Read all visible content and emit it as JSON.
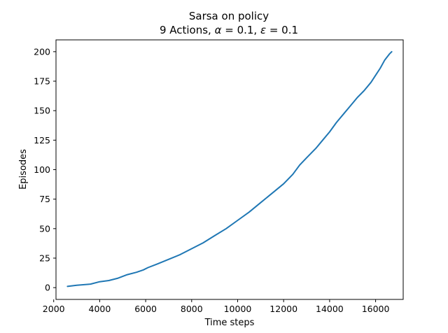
{
  "chart_data": {
    "type": "line",
    "title_line1": "Sarsa on policy",
    "title_line2_prefix": "9 Actions, ",
    "alpha_symbol": "α",
    "alpha_text": " = 0.1, ",
    "epsilon_symbol": "ε",
    "epsilon_text": " = 0.1",
    "xlabel": "Time steps",
    "ylabel": "Episodes",
    "xlim": [
      2100,
      17200
    ],
    "ylim": [
      -10,
      210
    ],
    "xticks": [
      2000,
      4000,
      6000,
      8000,
      10000,
      12000,
      14000,
      16000
    ],
    "yticks": [
      0,
      25,
      50,
      75,
      100,
      125,
      150,
      175,
      200
    ],
    "grid": false,
    "color": "#1f77b4",
    "series": [
      {
        "x": [
          2600,
          3000,
          3600,
          4000,
          4400,
          4800,
          5200,
          5600,
          5900,
          6100,
          6500,
          7000,
          7500,
          8000,
          8500,
          9000,
          9500,
          10000,
          10500,
          11000,
          11500,
          12000,
          12400,
          12700,
          13000,
          13400,
          13700,
          14000,
          14300,
          14600,
          14900,
          15200,
          15500,
          15800,
          16000,
          16200,
          16400,
          16600,
          16700
        ],
        "y": [
          1,
          2,
          3,
          5,
          6,
          8,
          11,
          13,
          15,
          17,
          20,
          24,
          28,
          33,
          38,
          44,
          50,
          57,
          64,
          72,
          80,
          88,
          96,
          104,
          110,
          118,
          125,
          132,
          140,
          147,
          154,
          161,
          167,
          174,
          180,
          186,
          193,
          198,
          200
        ]
      }
    ]
  }
}
